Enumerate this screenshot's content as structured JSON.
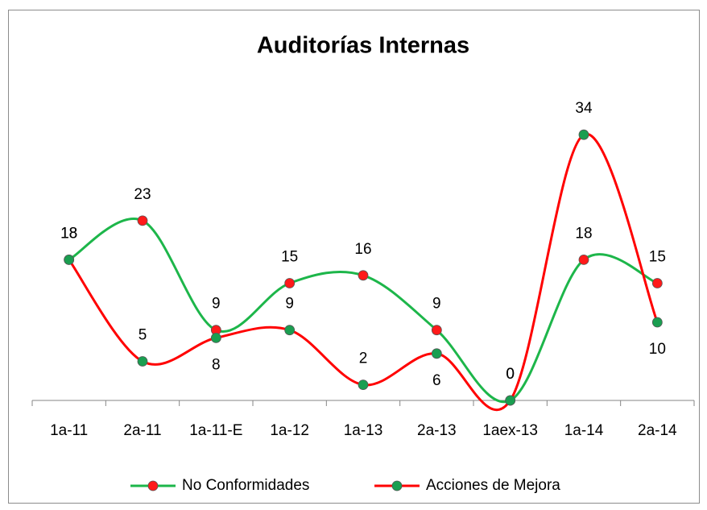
{
  "chart_data": {
    "type": "line",
    "title": "Auditorías Internas",
    "categories": [
      "1a-11",
      "2a-11",
      "1a-11-E",
      "1a-12",
      "1a-13",
      "2a-13",
      "1aex-13",
      "1a-14",
      "2a-14"
    ],
    "series": [
      {
        "name": "No Conformidades",
        "color": "#1db64a",
        "marker_color": "#ff1a1a",
        "values": [
          18,
          23,
          9,
          15,
          16,
          9,
          0,
          18,
          15
        ]
      },
      {
        "name": "Acciones de Mejora",
        "color": "#ff0000",
        "marker_color": "#1a9e50",
        "values": [
          18,
          5,
          8,
          9,
          2,
          6,
          0,
          34,
          10
        ]
      }
    ],
    "ylim": [
      0,
      40
    ],
    "smooth": true,
    "legend": "bottom"
  }
}
